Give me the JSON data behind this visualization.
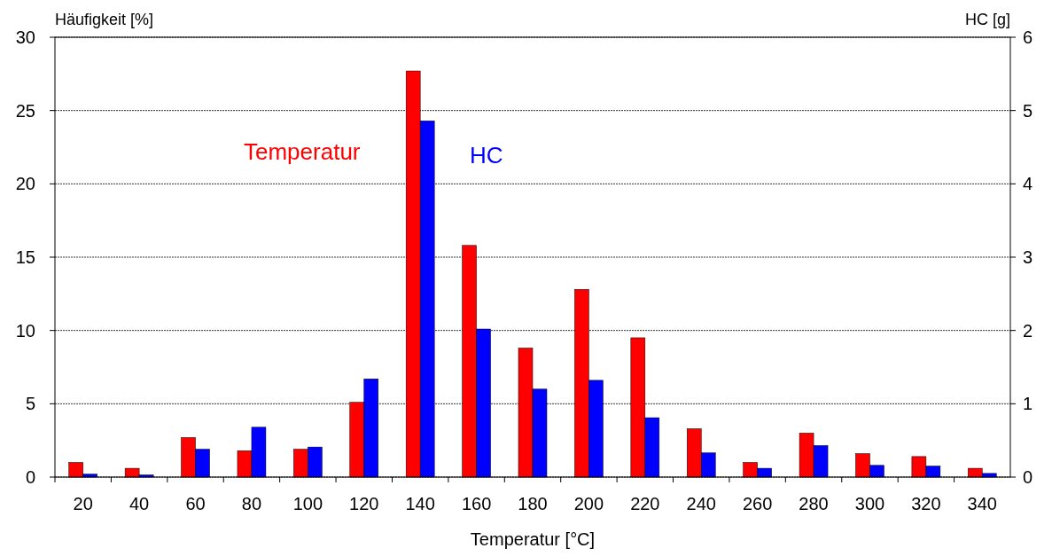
{
  "chart_data": {
    "type": "bar",
    "xlabel": "Temperatur [°C]",
    "ylabel": "Häufigkeit [%]",
    "y2label": "HC [g]",
    "categories": [
      "20",
      "40",
      "60",
      "80",
      "100",
      "120",
      "140",
      "160",
      "180",
      "200",
      "220",
      "240",
      "260",
      "280",
      "300",
      "320",
      "340"
    ],
    "series": [
      {
        "name": "Temperatur",
        "color": "#ff0000",
        "values": [
          1.0,
          0.6,
          2.7,
          1.8,
          1.9,
          5.1,
          27.7,
          15.8,
          8.8,
          12.8,
          9.5,
          3.3,
          1.0,
          3.0,
          1.6,
          1.4,
          0.6
        ]
      },
      {
        "name": "HC",
        "color": "#0000ff",
        "axis": "y2",
        "values": [
          0.04,
          0.03,
          0.38,
          0.68,
          0.41,
          1.34,
          4.86,
          2.02,
          1.2,
          1.32,
          0.81,
          0.33,
          0.12,
          0.43,
          0.16,
          0.15,
          0.05
        ]
      }
    ],
    "ylim": [
      0,
      30
    ],
    "yticks": [
      0,
      5,
      10,
      15,
      20,
      25,
      30
    ],
    "y2lim": [
      0,
      6
    ],
    "y2ticks": [
      0,
      1,
      2,
      3,
      4,
      5,
      6
    ],
    "grid": "y",
    "legend": "top"
  }
}
